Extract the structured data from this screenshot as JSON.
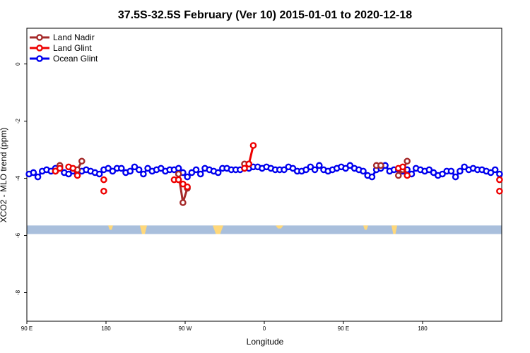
{
  "chart_data": {
    "type": "line",
    "title": "37.5S-32.5S February (Ver 10)   2015-01-01 to 2020-12-18",
    "xlabel": "Longitude",
    "ylabel": "XCO2 - MLO trend (ppm)",
    "xlim": [
      90,
      630
    ],
    "ylim": [
      -9.0,
      1.25
    ],
    "x_ticks": [
      {
        "value": 90,
        "label": "90 E"
      },
      {
        "value": 180,
        "label": "180"
      },
      {
        "value": 270,
        "label": "90 W"
      },
      {
        "value": 360,
        "label": "0"
      },
      {
        "value": 450,
        "label": "90 E"
      },
      {
        "value": 540,
        "label": "180"
      }
    ],
    "y_ticks": [
      0,
      -2,
      -4,
      -6,
      -8
    ],
    "grid": false,
    "legend_position": "top-left",
    "map_band": {
      "y_top": -5.65,
      "y_bottom": -5.95,
      "ocean_color": "#a9bfdc",
      "land_color": "#ffd87a"
    },
    "series": [
      {
        "name": "Land Nadir",
        "color": "#a52a2a",
        "segments": [
          {
            "x": [
              122.5,
              127.5
            ],
            "y": [
              -3.75,
              -3.55
            ]
          },
          {
            "x": [
              147.5,
              152.5
            ],
            "y": [
              -3.7,
              -3.4
            ]
          },
          {
            "x": [
              262.5,
              267.5,
              272.5
            ],
            "y": [
              -3.85,
              -4.85,
              -4.35
            ]
          },
          {
            "x": [
              337.5,
              342.5
            ],
            "y": [
              -3.5,
              -3.5
            ]
          },
          {
            "x": [
              487.5,
              492.5
            ],
            "y": [
              -3.55,
              -3.55
            ]
          },
          {
            "x": [
              512.5,
              517.5,
              522.5
            ],
            "y": [
              -3.9,
              -3.7,
              -3.4
            ]
          }
        ]
      },
      {
        "name": "Land Glint",
        "color": "#ee0000",
        "segments": [
          {
            "x": [
              122.5,
              127.5
            ],
            "y": [
              -3.75,
              -3.65
            ]
          },
          {
            "x": [
              137.5,
              142.5,
              147.5
            ],
            "y": [
              -3.6,
              -3.65,
              -3.9
            ]
          },
          {
            "x": [
              177.5
            ],
            "y": [
              -4.05
            ]
          },
          {
            "x": [
              177.5
            ],
            "y": [
              -4.45
            ]
          },
          {
            "x": [
              257.5,
              262.5,
              267.5,
              272.5
            ],
            "y": [
              -4.05,
              -4.05,
              -4.2,
              -4.3
            ]
          },
          {
            "x": [
              337.5,
              342.5,
              347.5
            ],
            "y": [
              -3.65,
              -3.5,
              -2.85
            ]
          },
          {
            "x": [
              512.5,
              517.5,
              522.5
            ],
            "y": [
              -3.65,
              -3.6,
              -3.9
            ]
          },
          {
            "x": [
              627.5
            ],
            "y": [
              -4.05
            ]
          },
          {
            "x": [
              627.5
            ],
            "y": [
              -4.45
            ]
          }
        ]
      },
      {
        "name": "Ocean Glint",
        "color": "#0000ee",
        "segments": [
          {
            "x": [
              92.5,
              97.5,
              102.5,
              107.5,
              112.5,
              117.5,
              122.5,
              127.5,
              132.5,
              137.5,
              142.5,
              147.5,
              152.5,
              157.5,
              162.5,
              167.5,
              172.5,
              177.5,
              182.5,
              187.5,
              192.5,
              197.5,
              202.5,
              207.5,
              212.5,
              217.5,
              222.5,
              227.5,
              232.5,
              237.5,
              242.5,
              247.5,
              252.5,
              257.5,
              262.5
            ],
            "y": [
              -3.85,
              -3.8,
              -3.95,
              -3.75,
              -3.7,
              -3.75,
              -3.65,
              -3.6,
              -3.8,
              -3.85,
              -3.75,
              -3.8,
              -3.75,
              -3.7,
              -3.75,
              -3.8,
              -3.85,
              -3.7,
              -3.65,
              -3.75,
              -3.65,
              -3.65,
              -3.8,
              -3.75,
              -3.6,
              -3.7,
              -3.85,
              -3.65,
              -3.75,
              -3.7,
              -3.65,
              -3.75,
              -3.7,
              -3.7,
              -3.65
            ]
          },
          {
            "x": [
              267.5,
              272.5,
              277.5,
              282.5,
              287.5,
              292.5,
              297.5,
              302.5,
              307.5,
              312.5,
              317.5,
              322.5,
              327.5,
              332.5,
              337.5,
              342.5,
              347.5,
              352.5,
              357.5,
              362.5,
              367.5,
              372.5,
              377.5,
              382.5,
              387.5,
              392.5,
              397.5,
              402.5,
              407.5,
              412.5,
              417.5,
              422.5,
              427.5,
              432.5,
              437.5,
              442.5,
              447.5,
              452.5,
              457.5,
              462.5,
              467.5,
              472.5,
              477.5,
              482.5,
              487.5,
              492.5,
              497.5,
              502.5,
              507.5,
              512.5,
              517.5,
              522.5,
              527.5,
              532.5,
              537.5,
              542.5,
              547.5,
              552.5,
              557.5,
              562.5,
              567.5,
              572.5,
              577.5,
              582.5,
              587.5,
              592.5,
              597.5,
              602.5,
              607.5,
              612.5,
              617.5,
              622.5,
              627.5
            ],
            "y": [
              -3.8,
              -3.95,
              -3.8,
              -3.7,
              -3.85,
              -3.65,
              -3.7,
              -3.75,
              -3.8,
              -3.65,
              -3.65,
              -3.7,
              -3.7,
              -3.7,
              -3.65,
              -3.65,
              -3.6,
              -3.6,
              -3.65,
              -3.6,
              -3.65,
              -3.7,
              -3.7,
              -3.7,
              -3.6,
              -3.65,
              -3.75,
              -3.75,
              -3.7,
              -3.6,
              -3.7,
              -3.55,
              -3.7,
              -3.75,
              -3.7,
              -3.65,
              -3.6,
              -3.65,
              -3.55,
              -3.65,
              -3.7,
              -3.75,
              -3.9,
              -3.95,
              -3.7,
              -3.65,
              -3.55,
              -3.75,
              -3.7,
              -3.7,
              -3.75,
              -3.7,
              -3.85,
              -3.65,
              -3.7,
              -3.75,
              -3.7,
              -3.8,
              -3.9,
              -3.85,
              -3.75,
              -3.75,
              -3.95,
              -3.75,
              -3.6,
              -3.7,
              -3.65,
              -3.7,
              -3.7,
              -3.75,
              -3.8,
              -3.7,
              -3.85
            ]
          }
        ]
      }
    ]
  }
}
